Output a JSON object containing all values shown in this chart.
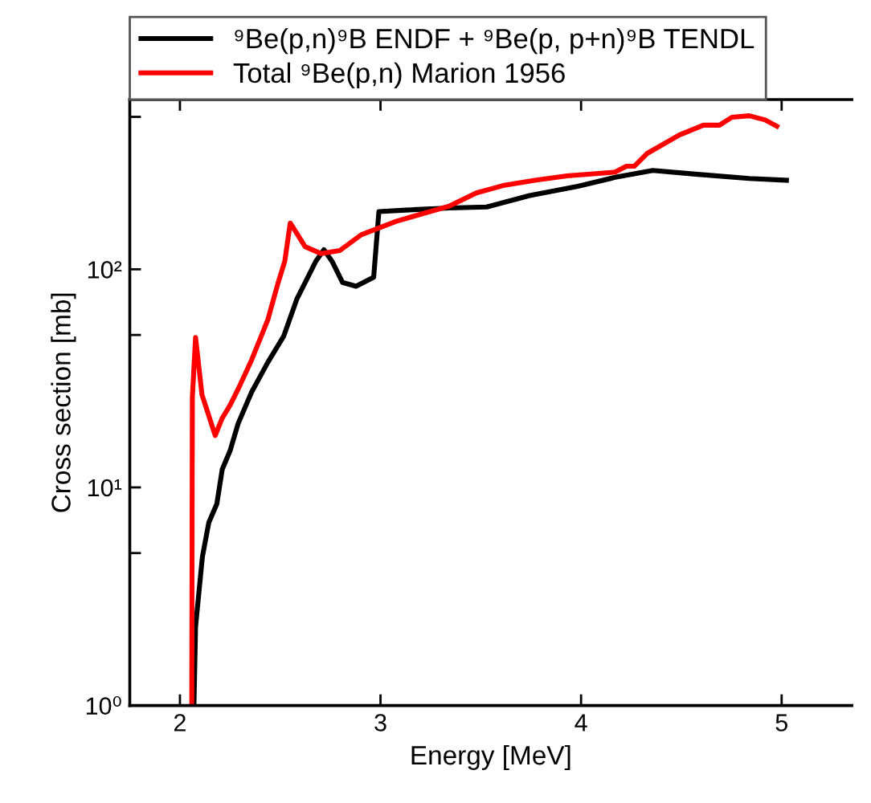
{
  "chart_data": {
    "type": "line",
    "xlabel": "Energy [MeV]",
    "ylabel": "Cross section [mb]",
    "log": "y",
    "xlim": [
      1.75,
      5.35
    ],
    "ylim": [
      1,
      600
    ],
    "xticks": [
      2,
      3,
      4,
      5
    ],
    "yticks": [
      {
        "value": 1,
        "label": "10⁰"
      },
      {
        "value": 5,
        "label": null
      },
      {
        "value": 10,
        "label": "10¹"
      },
      {
        "value": 50,
        "label": null
      },
      {
        "value": 100,
        "label": "10²"
      },
      {
        "value": 500,
        "label": null
      }
    ],
    "legend": "top",
    "grid": false,
    "marker": "none",
    "line_style": "solid",
    "series": [
      {
        "name": "⁹Be(p,n)⁹B ENDF + ⁹Be(p, p+n)⁹B TENDL",
        "color": "#000000",
        "x": [
          2.07,
          2.078,
          2.112,
          2.144,
          2.184,
          2.211,
          2.251,
          2.29,
          2.358,
          2.438,
          2.518,
          2.584,
          2.638,
          2.678,
          2.718,
          2.758,
          2.811,
          2.878,
          2.966,
          2.992,
          3.184,
          3.344,
          3.53,
          3.744,
          3.984,
          4.17,
          4.358,
          4.57,
          4.838,
          5.024
        ],
        "values": [
          1,
          2.3,
          4.8,
          6.9,
          8.4,
          12.1,
          14.8,
          19.6,
          27.4,
          37.4,
          49.5,
          73.4,
          92,
          109,
          123,
          109,
          87,
          83.6,
          92,
          184,
          188,
          191,
          193,
          218,
          240,
          264,
          284,
          273,
          261,
          256
        ]
      },
      {
        "name": "Total ⁹Be(p,n) Marion 1956",
        "color": "#ff0000",
        "x": [
          2.059,
          2.062,
          2.078,
          2.11,
          2.176,
          2.21,
          2.25,
          2.29,
          2.358,
          2.438,
          2.49,
          2.523,
          2.55,
          2.624,
          2.704,
          2.798,
          2.904,
          3.078,
          3.344,
          3.478,
          3.611,
          3.77,
          3.93,
          4.17,
          4.226,
          4.266,
          4.33,
          4.49,
          4.61,
          4.69,
          4.752,
          4.838,
          4.918,
          4.976
        ],
        "values": [
          1,
          25.9,
          48.7,
          26.6,
          17.3,
          20.7,
          23.8,
          28.2,
          38.5,
          58.6,
          87,
          109,
          163,
          127,
          118,
          122,
          144,
          166,
          195,
          224,
          242,
          256,
          268,
          279,
          297,
          297,
          340,
          413,
          458,
          458,
          498,
          506,
          484,
          453
        ]
      }
    ]
  }
}
